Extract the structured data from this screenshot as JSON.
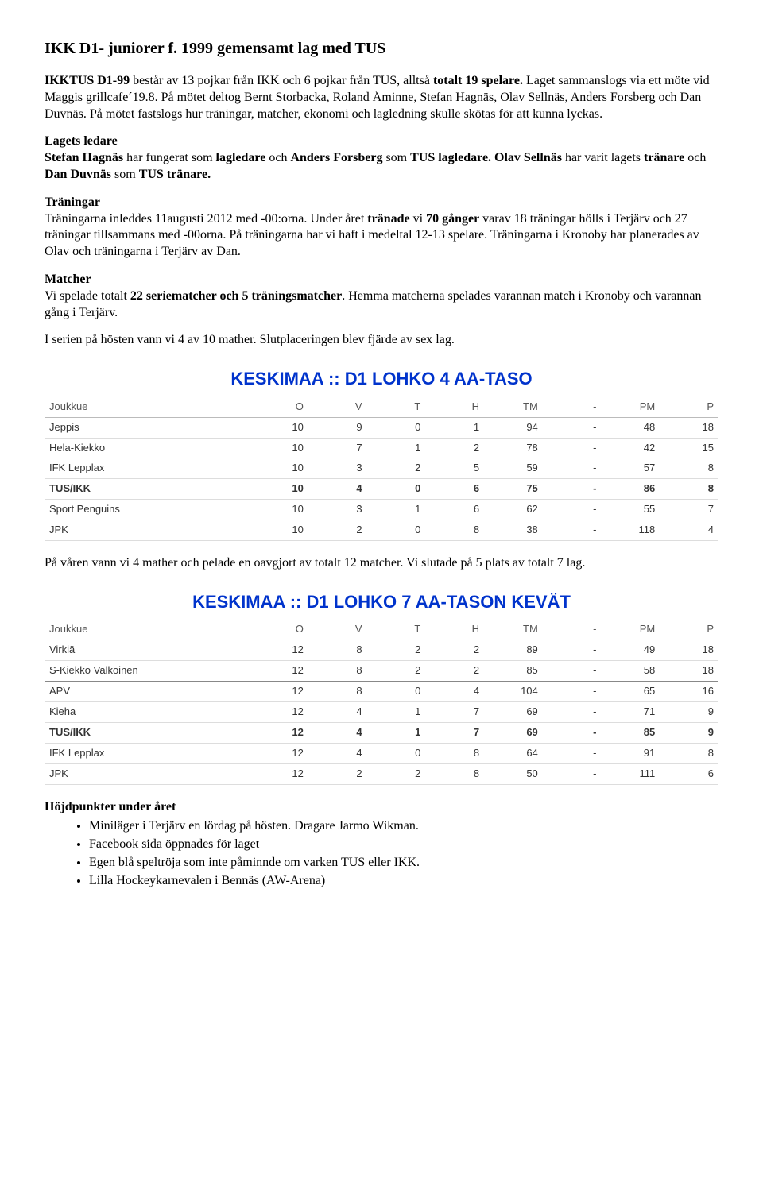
{
  "title": "IKK D1- juniorer f. 1999 gemensamt lag med TUS",
  "intro_html": "<span class='b'>IKKTUS D1-99</span> består av 13 pojkar från IKK och 6 pojkar från TUS, alltså <span class='b'>totalt 19 spelare.</span> Laget sammanslogs via ett möte vid Maggis grillcafe´19.8. På mötet deltog Bernt Storbacka, Roland Åminne, Stefan Hagnäs, Olav Sellnäs, Anders Forsberg och Dan Duvnäs. På mötet fastslogs hur träningar, matcher, ekonomi och lagledning skulle skötas för att kunna lyckas.",
  "leaders_head": "Lagets ledare",
  "leaders_html": "<span class='b'>Stefan Hagnäs</span> har fungerat som <span class='b'>lagledare</span> och <span class='b'>Anders Forsberg</span> som <span class='b'>TUS lagledare. Olav Sellnäs</span> har varit lagets <span class='b'>tränare</span> och <span class='b'>Dan Duvnäs</span> som <span class='b'>TUS tränare.</span>",
  "trainings_head": "Träningar",
  "trainings_html": "Träningarna inleddes 11augusti 2012 med -00:orna. Under året <span class='b'>tränade</span> vi <span class='b'>70 gånger</span> varav 18 träningar hölls i Terjärv och 27 träningar tillsammans med -00orna. På träningarna har vi haft i medeltal 12-13 spelare. Träningarna i Kronoby har planerades av Olav och träningarna i Terjärv av Dan.",
  "matches_head": "Matcher",
  "matches_html": "Vi spelade totalt <span class='b'>22 seriematcher och 5 träningsmatcher</span>. Hemma matcherna spelades varannan match i Kronoby och varannan gång i Terjärv.",
  "autumn_result": "I serien på hösten vann vi 4 av 10 mather. Slutplaceringen blev fjärde av sex lag.",
  "table1_title": "KESKIMAA :: D1 LOHKO 4 AA-TASO",
  "table_headers": [
    "Joukkue",
    "O",
    "V",
    "T",
    "H",
    "TM",
    "-",
    "PM",
    "P"
  ],
  "table1_rows": [
    {
      "cells": [
        "Jeppis",
        "10",
        "9",
        "0",
        "1",
        "94",
        "-",
        "48",
        "18"
      ]
    },
    {
      "cells": [
        "Hela-Kiekko",
        "10",
        "7",
        "1",
        "2",
        "78",
        "-",
        "42",
        "15"
      ],
      "sep": true
    },
    {
      "cells": [
        "IFK Lepplax",
        "10",
        "3",
        "2",
        "5",
        "59",
        "-",
        "57",
        "8"
      ]
    },
    {
      "cells": [
        "TUS/IKK",
        "10",
        "4",
        "0",
        "6",
        "75",
        "-",
        "86",
        "8"
      ],
      "bold": true
    },
    {
      "cells": [
        "Sport Penguins",
        "10",
        "3",
        "1",
        "6",
        "62",
        "-",
        "55",
        "7"
      ]
    },
    {
      "cells": [
        "JPK",
        "10",
        "2",
        "0",
        "8",
        "38",
        "-",
        "118",
        "4"
      ]
    }
  ],
  "spring_intro": "På våren vann vi 4 mather och pelade en oavgjort av totalt 12 matcher. Vi slutade på 5 plats av totalt 7 lag.",
  "table2_title": "KESKIMAA :: D1 LOHKO 7 AA-TASON KEVÄT",
  "table2_rows": [
    {
      "cells": [
        "Virkiä",
        "12",
        "8",
        "2",
        "2",
        "89",
        "-",
        "49",
        "18"
      ]
    },
    {
      "cells": [
        "S-Kiekko Valkoinen",
        "12",
        "8",
        "2",
        "2",
        "85",
        "-",
        "58",
        "18"
      ],
      "sep": true
    },
    {
      "cells": [
        "APV",
        "12",
        "8",
        "0",
        "4",
        "104",
        "-",
        "65",
        "16"
      ]
    },
    {
      "cells": [
        "Kieha",
        "12",
        "4",
        "1",
        "7",
        "69",
        "-",
        "71",
        "9"
      ]
    },
    {
      "cells": [
        "TUS/IKK",
        "12",
        "4",
        "1",
        "7",
        "69",
        "-",
        "85",
        "9"
      ],
      "bold": true
    },
    {
      "cells": [
        "IFK Lepplax",
        "12",
        "4",
        "0",
        "8",
        "64",
        "-",
        "91",
        "8"
      ]
    },
    {
      "cells": [
        "JPK",
        "12",
        "2",
        "2",
        "8",
        "50",
        "-",
        "111",
        "6"
      ]
    }
  ],
  "highlights_head": "Höjdpunkter under året",
  "highlights": [
    "Miniläger i Terjärv en lördag på hösten. Dragare Jarmo Wikman.",
    "Facebook sida öppnades för laget",
    "Egen blå speltröja som inte påminnde om varken TUS eller IKK.",
    "Lilla Hockeykarnevalen i Bennäs (AW-Arena)"
  ]
}
